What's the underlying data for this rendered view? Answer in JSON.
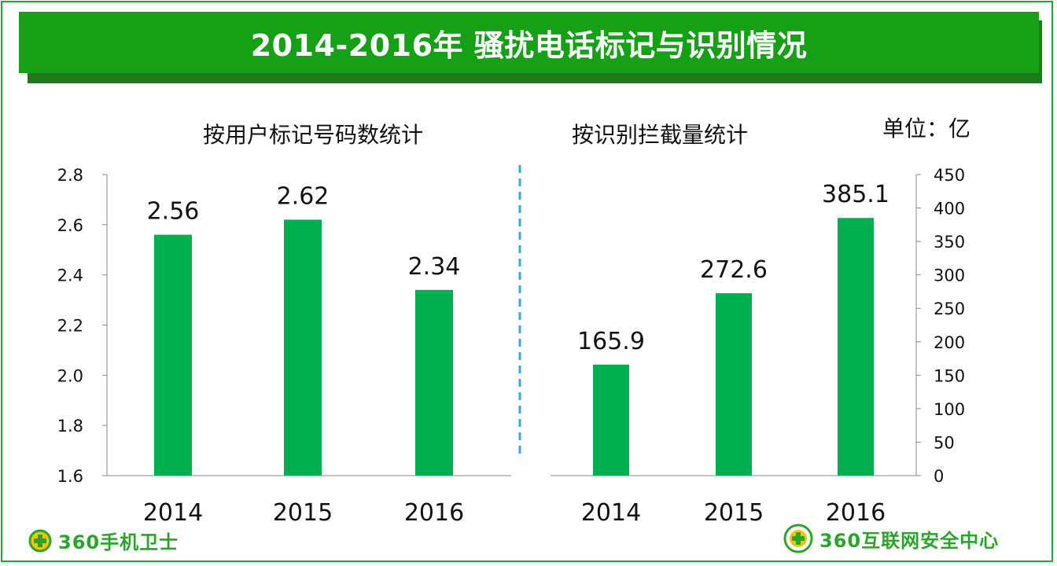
{
  "title": "2014-2016年 骚扰电话标记与识别情况",
  "unit": "单位：亿",
  "logos": {
    "left": "360手机卫士",
    "right": "360互联网安全中心"
  },
  "colors": {
    "bar": "#00b050",
    "title_bar": "#16a016",
    "divider": "#3aa8e0"
  },
  "chart_data": [
    {
      "type": "bar",
      "title": "按用户标记号码数统计",
      "categories": [
        "2014",
        "2015",
        "2016"
      ],
      "values": [
        2.56,
        2.62,
        2.34
      ],
      "data_labels": [
        "2.56",
        "2.62",
        "2.34"
      ],
      "ylim": [
        1.6,
        2.8
      ],
      "yticks": [
        "1.6",
        "1.8",
        "2.0",
        "2.2",
        "2.4",
        "2.6",
        "2.8"
      ],
      "axis_side": "left"
    },
    {
      "type": "bar",
      "title": "按识别拦截量统计",
      "categories": [
        "2014",
        "2015",
        "2016"
      ],
      "values": [
        165.9,
        272.6,
        385.1
      ],
      "data_labels": [
        "165.9",
        "272.6",
        "385.1"
      ],
      "ylim": [
        0,
        450
      ],
      "yticks": [
        "0",
        "50",
        "100",
        "150",
        "200",
        "250",
        "300",
        "350",
        "400",
        "450"
      ],
      "axis_side": "right"
    }
  ]
}
